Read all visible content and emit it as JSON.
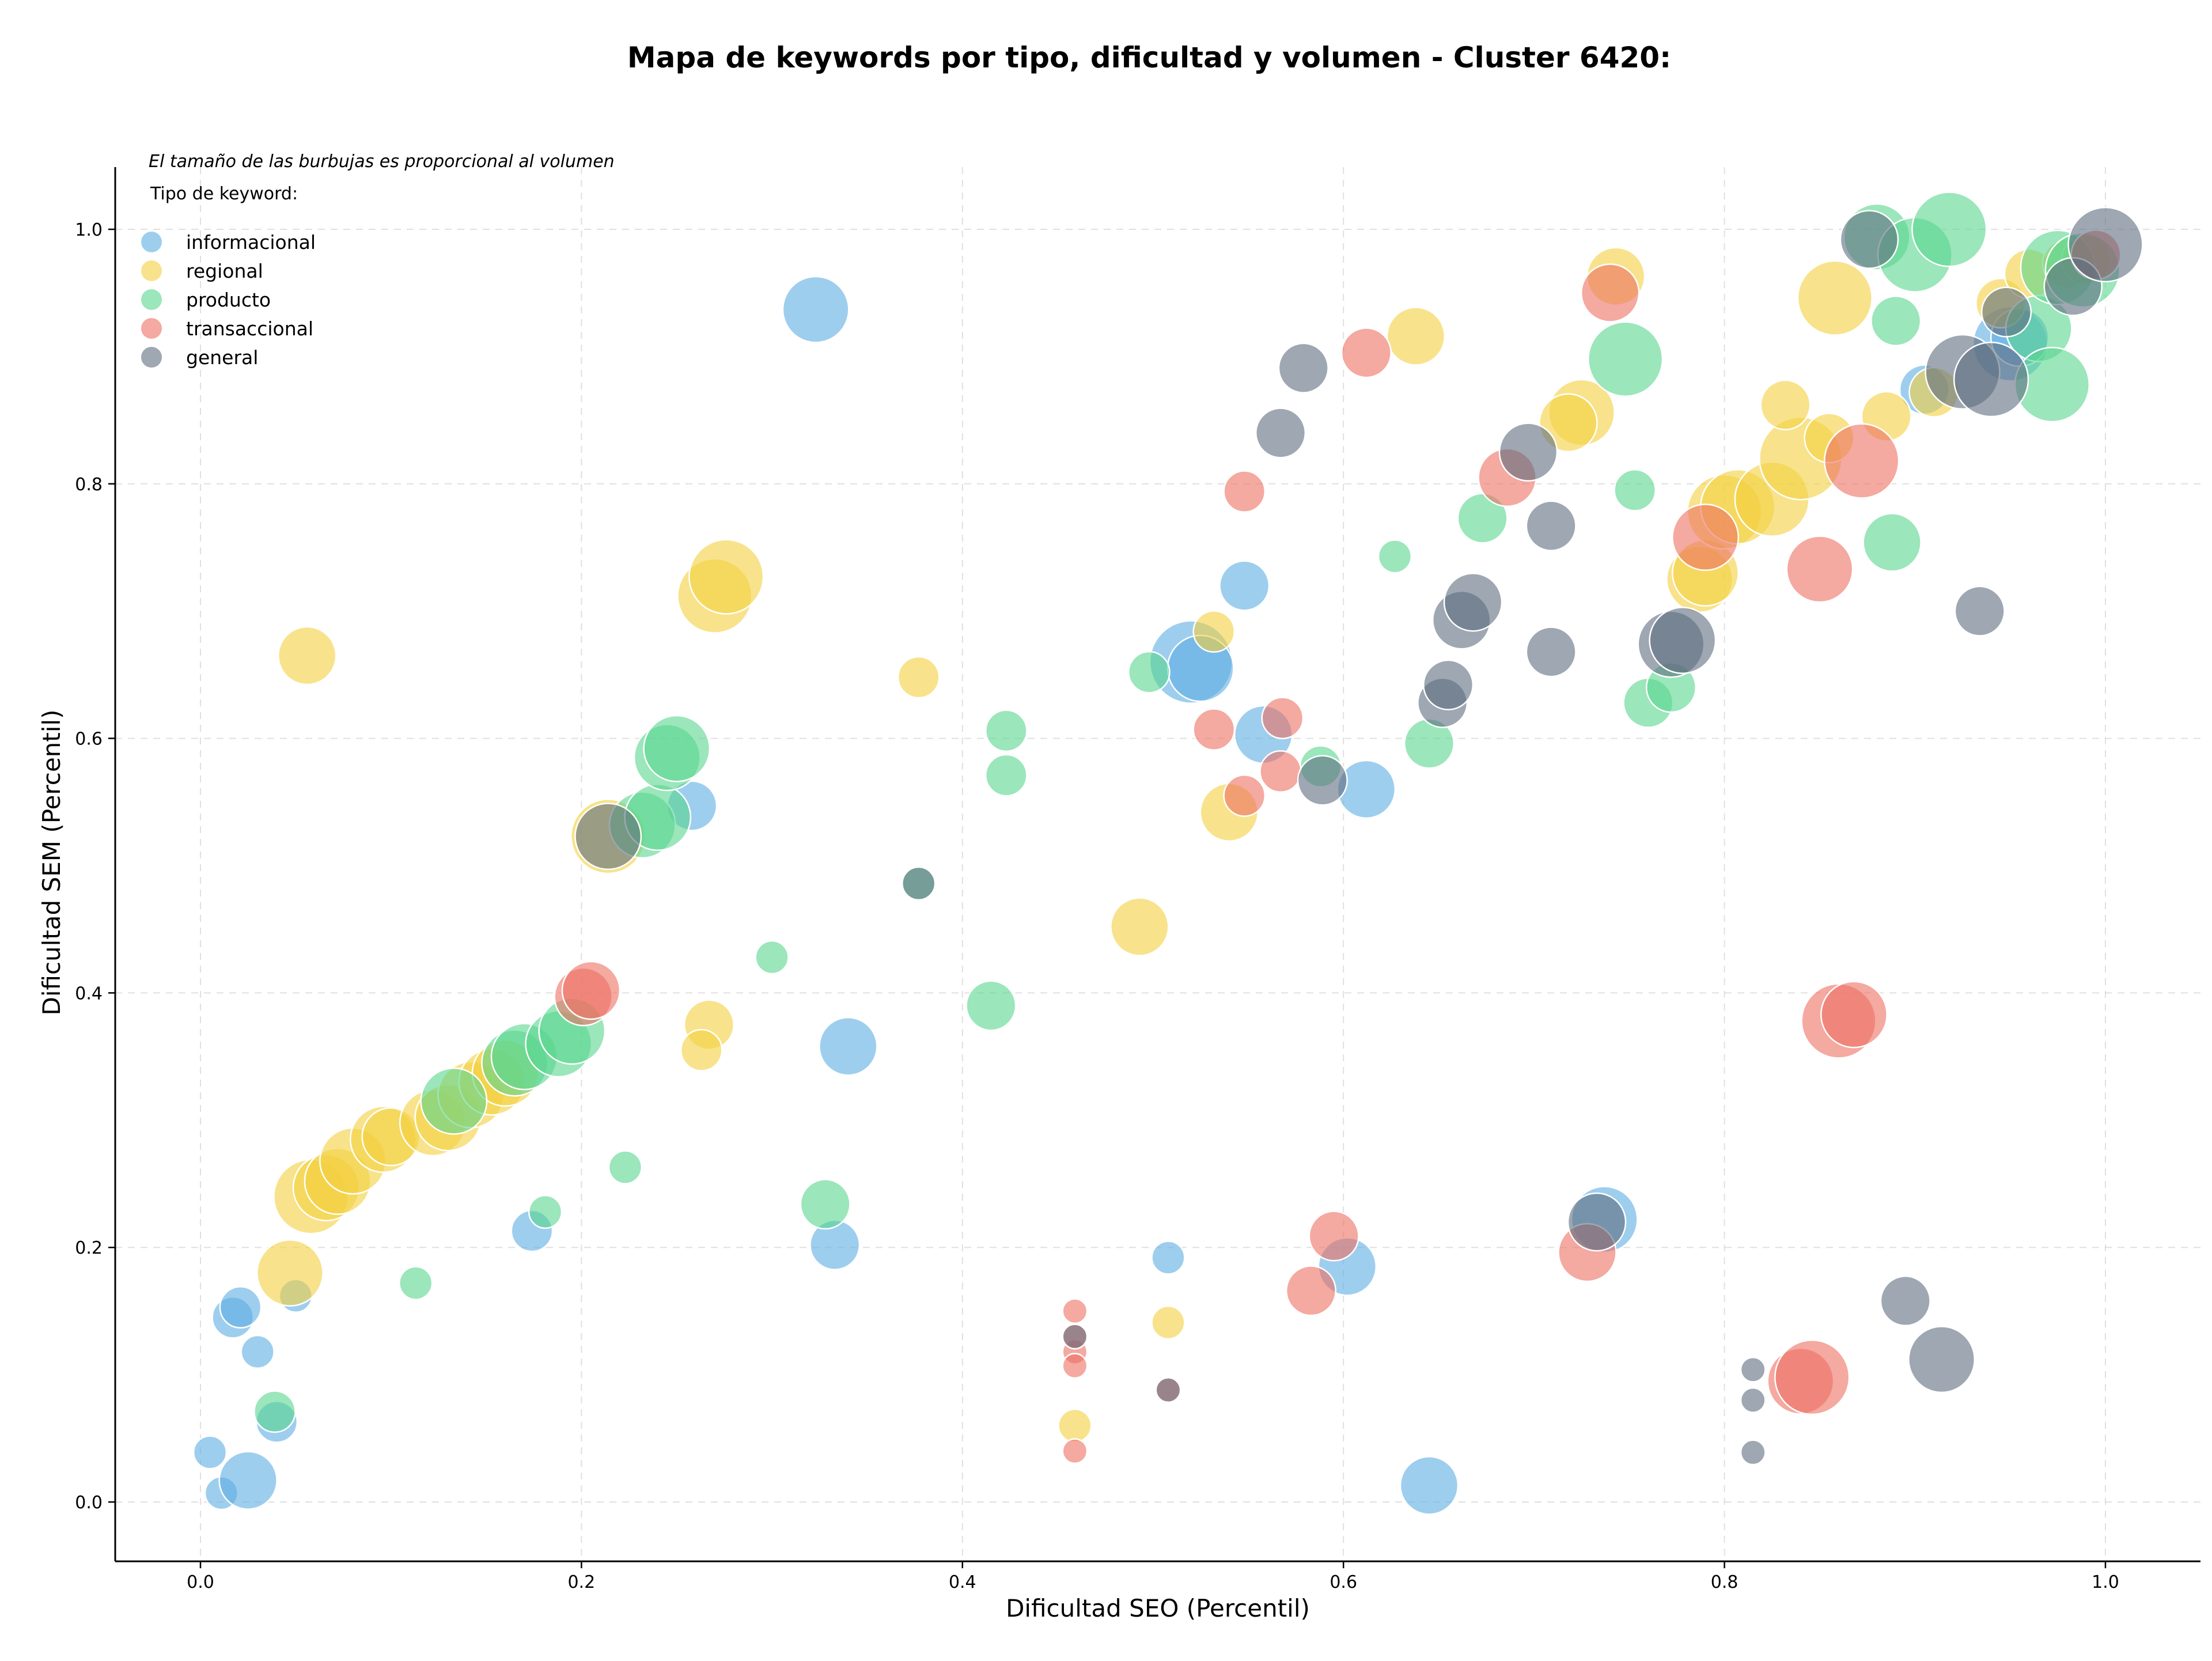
{
  "chart_data": {
    "type": "scatter",
    "title": "Mapa de keywords por tipo, dificultad y volumen - Cluster 6420:",
    "xlabel": "Dificultad SEO (Percentil)",
    "ylabel": "Dificultad SEM (Percentil)",
    "note": "El tamaño de las burbujas es proporcional al volumen",
    "legend_title": "Tipo de keyword:",
    "legend_position": "top-left",
    "grid": true,
    "xlim": [
      -0.045,
      1.05
    ],
    "ylim": [
      -0.045,
      1.05
    ],
    "xticks": [
      0.0,
      0.2,
      0.4,
      0.6,
      0.8,
      1.0
    ],
    "yticks": [
      0.0,
      0.2,
      0.4,
      0.6,
      0.8,
      1.0
    ],
    "xtick_labels": [
      "0.0",
      "0.2",
      "0.4",
      "0.6",
      "0.8",
      "1.0"
    ],
    "ytick_labels": [
      "0.0",
      "0.2",
      "0.4",
      "0.6",
      "0.8",
      "1.0"
    ],
    "size_scale": [
      1,
      10
    ],
    "series": [
      {
        "name": "informacional",
        "color": "#5DADE2",
        "points": [
          {
            "x": 0.005,
            "y": 0.039,
            "s": 2
          },
          {
            "x": 0.011,
            "y": 0.007,
            "s": 2
          },
          {
            "x": 0.025,
            "y": 0.017,
            "s": 5
          },
          {
            "x": 0.03,
            "y": 0.118,
            "s": 2
          },
          {
            "x": 0.017,
            "y": 0.145,
            "s": 3
          },
          {
            "x": 0.021,
            "y": 0.153,
            "s": 3
          },
          {
            "x": 0.05,
            "y": 0.162,
            "s": 2
          },
          {
            "x": 0.04,
            "y": 0.063,
            "s": 3
          },
          {
            "x": 0.174,
            "y": 0.213,
            "s": 3
          },
          {
            "x": 0.323,
            "y": 0.937,
            "s": 6
          },
          {
            "x": 0.34,
            "y": 0.358,
            "s": 5
          },
          {
            "x": 0.333,
            "y": 0.202,
            "s": 4
          },
          {
            "x": 0.258,
            "y": 0.547,
            "s": 4
          },
          {
            "x": 0.508,
            "y": 0.192,
            "s": 2
          },
          {
            "x": 0.52,
            "y": 0.66,
            "s": 8
          },
          {
            "x": 0.525,
            "y": 0.655,
            "s": 6
          },
          {
            "x": 0.548,
            "y": 0.72,
            "s": 4
          },
          {
            "x": 0.558,
            "y": 0.603,
            "s": 5
          },
          {
            "x": 0.612,
            "y": 0.56,
            "s": 5
          },
          {
            "x": 0.602,
            "y": 0.185,
            "s": 5
          },
          {
            "x": 0.645,
            "y": 0.013,
            "s": 5
          },
          {
            "x": 0.737,
            "y": 0.222,
            "s": 6
          },
          {
            "x": 0.905,
            "y": 0.874,
            "s": 4
          },
          {
            "x": 0.95,
            "y": 0.91,
            "s": 7
          },
          {
            "x": 0.955,
            "y": 0.915,
            "s": 5
          }
        ]
      },
      {
        "name": "regional",
        "color": "#F4D03F",
        "points": [
          {
            "x": 0.047,
            "y": 0.18,
            "s": 6
          },
          {
            "x": 0.058,
            "y": 0.24,
            "s": 7
          },
          {
            "x": 0.066,
            "y": 0.247,
            "s": 6
          },
          {
            "x": 0.072,
            "y": 0.252,
            "s": 6
          },
          {
            "x": 0.08,
            "y": 0.268,
            "s": 6
          },
          {
            "x": 0.096,
            "y": 0.285,
            "s": 6
          },
          {
            "x": 0.1,
            "y": 0.287,
            "s": 5
          },
          {
            "x": 0.122,
            "y": 0.298,
            "s": 6
          },
          {
            "x": 0.13,
            "y": 0.302,
            "s": 6
          },
          {
            "x": 0.142,
            "y": 0.32,
            "s": 6
          },
          {
            "x": 0.153,
            "y": 0.33,
            "s": 6
          },
          {
            "x": 0.16,
            "y": 0.337,
            "s": 6
          },
          {
            "x": 0.056,
            "y": 0.665,
            "s": 5
          },
          {
            "x": 0.214,
            "y": 0.523,
            "s": 7
          },
          {
            "x": 0.27,
            "y": 0.712,
            "s": 7
          },
          {
            "x": 0.276,
            "y": 0.727,
            "s": 7
          },
          {
            "x": 0.267,
            "y": 0.375,
            "s": 4
          },
          {
            "x": 0.263,
            "y": 0.355,
            "s": 3
          },
          {
            "x": 0.377,
            "y": 0.648,
            "s": 3
          },
          {
            "x": 0.493,
            "y": 0.452,
            "s": 5
          },
          {
            "x": 0.508,
            "y": 0.141,
            "s": 2
          },
          {
            "x": 0.459,
            "y": 0.06,
            "s": 2
          },
          {
            "x": 0.532,
            "y": 0.684,
            "s": 3
          },
          {
            "x": 0.54,
            "y": 0.542,
            "s": 5
          },
          {
            "x": 0.638,
            "y": 0.916,
            "s": 5
          },
          {
            "x": 0.743,
            "y": 0.963,
            "s": 5
          },
          {
            "x": 0.725,
            "y": 0.856,
            "s": 6
          },
          {
            "x": 0.718,
            "y": 0.848,
            "s": 5
          },
          {
            "x": 0.787,
            "y": 0.725,
            "s": 6
          },
          {
            "x": 0.79,
            "y": 0.73,
            "s": 6
          },
          {
            "x": 0.8,
            "y": 0.778,
            "s": 7
          },
          {
            "x": 0.807,
            "y": 0.782,
            "s": 7
          },
          {
            "x": 0.825,
            "y": 0.788,
            "s": 7
          },
          {
            "x": 0.84,
            "y": 0.82,
            "s": 8
          },
          {
            "x": 0.832,
            "y": 0.862,
            "s": 4
          },
          {
            "x": 0.855,
            "y": 0.836,
            "s": 4
          },
          {
            "x": 0.858,
            "y": 0.946,
            "s": 7
          },
          {
            "x": 0.885,
            "y": 0.853,
            "s": 4
          },
          {
            "x": 0.91,
            "y": 0.872,
            "s": 4
          },
          {
            "x": 0.945,
            "y": 0.942,
            "s": 4
          },
          {
            "x": 0.96,
            "y": 0.965,
            "s": 4
          },
          {
            "x": 0.98,
            "y": 0.973,
            "s": 4
          },
          {
            "x": 0.99,
            "y": 0.976,
            "s": 4
          }
        ]
      },
      {
        "name": "producto",
        "color": "#58D68D",
        "points": [
          {
            "x": 0.039,
            "y": 0.071,
            "s": 3
          },
          {
            "x": 0.113,
            "y": 0.172,
            "s": 2
          },
          {
            "x": 0.181,
            "y": 0.228,
            "s": 2
          },
          {
            "x": 0.223,
            "y": 0.263,
            "s": 2
          },
          {
            "x": 0.133,
            "y": 0.315,
            "s": 6
          },
          {
            "x": 0.165,
            "y": 0.345,
            "s": 6
          },
          {
            "x": 0.17,
            "y": 0.35,
            "s": 6
          },
          {
            "x": 0.188,
            "y": 0.36,
            "s": 6
          },
          {
            "x": 0.195,
            "y": 0.37,
            "s": 6
          },
          {
            "x": 0.232,
            "y": 0.532,
            "s": 6
          },
          {
            "x": 0.24,
            "y": 0.538,
            "s": 6
          },
          {
            "x": 0.245,
            "y": 0.585,
            "s": 6
          },
          {
            "x": 0.25,
            "y": 0.592,
            "s": 6
          },
          {
            "x": 0.3,
            "y": 0.428,
            "s": 2
          },
          {
            "x": 0.377,
            "y": 0.486,
            "s": 2
          },
          {
            "x": 0.328,
            "y": 0.234,
            "s": 4
          },
          {
            "x": 0.415,
            "y": 0.39,
            "s": 4
          },
          {
            "x": 0.423,
            "y": 0.606,
            "s": 3
          },
          {
            "x": 0.423,
            "y": 0.571,
            "s": 3
          },
          {
            "x": 0.498,
            "y": 0.652,
            "s": 3
          },
          {
            "x": 0.588,
            "y": 0.578,
            "s": 3
          },
          {
            "x": 0.627,
            "y": 0.743,
            "s": 2
          },
          {
            "x": 0.645,
            "y": 0.596,
            "s": 4
          },
          {
            "x": 0.673,
            "y": 0.773,
            "s": 4
          },
          {
            "x": 0.748,
            "y": 0.898,
            "s": 7
          },
          {
            "x": 0.753,
            "y": 0.795,
            "s": 3
          },
          {
            "x": 0.76,
            "y": 0.628,
            "s": 4
          },
          {
            "x": 0.772,
            "y": 0.64,
            "s": 4
          },
          {
            "x": 0.88,
            "y": 0.994,
            "s": 6
          },
          {
            "x": 0.9,
            "y": 0.98,
            "s": 7
          },
          {
            "x": 0.918,
            "y": 1.0,
            "s": 7
          },
          {
            "x": 0.89,
            "y": 0.928,
            "s": 4
          },
          {
            "x": 0.888,
            "y": 0.754,
            "s": 5
          },
          {
            "x": 0.965,
            "y": 0.922,
            "s": 6
          },
          {
            "x": 0.972,
            "y": 0.878,
            "s": 7
          },
          {
            "x": 0.975,
            "y": 0.97,
            "s": 7
          },
          {
            "x": 0.988,
            "y": 0.968,
            "s": 7
          }
        ]
      },
      {
        "name": "transaccional",
        "color": "#EC7063",
        "points": [
          {
            "x": 0.201,
            "y": 0.397,
            "s": 5
          },
          {
            "x": 0.205,
            "y": 0.402,
            "s": 5
          },
          {
            "x": 0.459,
            "y": 0.15,
            "s": 1
          },
          {
            "x": 0.459,
            "y": 0.118,
            "s": 1
          },
          {
            "x": 0.459,
            "y": 0.107,
            "s": 1
          },
          {
            "x": 0.459,
            "y": 0.13,
            "s": 1
          },
          {
            "x": 0.459,
            "y": 0.04,
            "s": 1
          },
          {
            "x": 0.508,
            "y": 0.088,
            "s": 1
          },
          {
            "x": 0.532,
            "y": 0.607,
            "s": 3
          },
          {
            "x": 0.548,
            "y": 0.794,
            "s": 3
          },
          {
            "x": 0.548,
            "y": 0.555,
            "s": 3
          },
          {
            "x": 0.567,
            "y": 0.574,
            "s": 3
          },
          {
            "x": 0.568,
            "y": 0.616,
            "s": 3
          },
          {
            "x": 0.583,
            "y": 0.166,
            "s": 4
          },
          {
            "x": 0.595,
            "y": 0.209,
            "s": 4
          },
          {
            "x": 0.612,
            "y": 0.903,
            "s": 4
          },
          {
            "x": 0.686,
            "y": 0.805,
            "s": 5
          },
          {
            "x": 0.728,
            "y": 0.196,
            "s": 5
          },
          {
            "x": 0.74,
            "y": 0.95,
            "s": 5
          },
          {
            "x": 0.79,
            "y": 0.758,
            "s": 6
          },
          {
            "x": 0.85,
            "y": 0.733,
            "s": 6
          },
          {
            "x": 0.872,
            "y": 0.818,
            "s": 7
          },
          {
            "x": 0.86,
            "y": 0.378,
            "s": 7
          },
          {
            "x": 0.868,
            "y": 0.383,
            "s": 6
          },
          {
            "x": 0.84,
            "y": 0.095,
            "s": 6
          },
          {
            "x": 0.846,
            "y": 0.098,
            "s": 7
          },
          {
            "x": 0.995,
            "y": 0.98,
            "s": 4
          }
        ]
      },
      {
        "name": "general",
        "color": "#5D6D7E",
        "points": [
          {
            "x": 0.214,
            "y": 0.523,
            "s": 6
          },
          {
            "x": 0.377,
            "y": 0.486,
            "s": 2
          },
          {
            "x": 0.459,
            "y": 0.13,
            "s": 1
          },
          {
            "x": 0.508,
            "y": 0.088,
            "s": 1
          },
          {
            "x": 0.567,
            "y": 0.84,
            "s": 4
          },
          {
            "x": 0.579,
            "y": 0.891,
            "s": 4
          },
          {
            "x": 0.589,
            "y": 0.567,
            "s": 4
          },
          {
            "x": 0.652,
            "y": 0.628,
            "s": 4
          },
          {
            "x": 0.655,
            "y": 0.642,
            "s": 4
          },
          {
            "x": 0.662,
            "y": 0.693,
            "s": 5
          },
          {
            "x": 0.668,
            "y": 0.707,
            "s": 5
          },
          {
            "x": 0.697,
            "y": 0.825,
            "s": 5
          },
          {
            "x": 0.709,
            "y": 0.767,
            "s": 4
          },
          {
            "x": 0.709,
            "y": 0.668,
            "s": 4
          },
          {
            "x": 0.733,
            "y": 0.22,
            "s": 5
          },
          {
            "x": 0.772,
            "y": 0.674,
            "s": 6
          },
          {
            "x": 0.778,
            "y": 0.677,
            "s": 6
          },
          {
            "x": 0.815,
            "y": 0.104,
            "s": 1
          },
          {
            "x": 0.815,
            "y": 0.08,
            "s": 1
          },
          {
            "x": 0.815,
            "y": 0.039,
            "s": 1
          },
          {
            "x": 0.876,
            "y": 0.992,
            "s": 5
          },
          {
            "x": 0.895,
            "y": 0.158,
            "s": 4
          },
          {
            "x": 0.914,
            "y": 0.112,
            "s": 6
          },
          {
            "x": 0.925,
            "y": 0.888,
            "s": 7
          },
          {
            "x": 0.94,
            "y": 0.882,
            "s": 7
          },
          {
            "x": 0.934,
            "y": 0.7,
            "s": 4
          },
          {
            "x": 0.948,
            "y": 0.935,
            "s": 4
          },
          {
            "x": 0.983,
            "y": 0.955,
            "s": 5
          },
          {
            "x": 1.0,
            "y": 0.988,
            "s": 7
          }
        ]
      }
    ]
  }
}
